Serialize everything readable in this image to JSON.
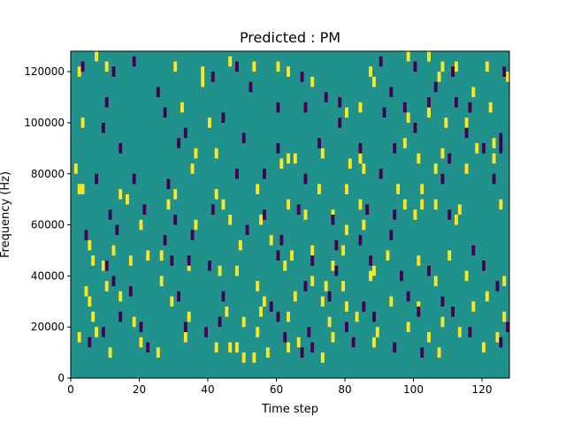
{
  "chart_data": {
    "type": "heatmap",
    "title": "Predicted : PM",
    "xlabel": "Time step",
    "ylabel": "Frequency (Hz)",
    "xlim": [
      0,
      128
    ],
    "ylim": [
      0,
      128000
    ],
    "x_ticks": [
      "0",
      "20",
      "40",
      "60",
      "80",
      "100",
      "120"
    ],
    "y_ticks": [
      "0",
      "20000",
      "40000",
      "60000",
      "80000",
      "100000",
      "120000"
    ],
    "grid": false,
    "colormap": "viridis",
    "colors": {
      "background": "#21918c",
      "high": "#fde725",
      "low": "#440154"
    },
    "cell_height": 4000,
    "high_cells": [
      [
        7,
        124000
      ],
      [
        2,
        118000
      ],
      [
        10,
        120000
      ],
      [
        30,
        120000
      ],
      [
        46,
        122000
      ],
      [
        38,
        118000
      ],
      [
        60,
        120000
      ],
      [
        63,
        118000
      ],
      [
        87,
        118000
      ],
      [
        98,
        124000
      ],
      [
        104,
        124000
      ],
      [
        108,
        120000
      ],
      [
        112,
        120000
      ],
      [
        121,
        120000
      ],
      [
        38,
        114000
      ],
      [
        53,
        120000
      ],
      [
        70,
        114000
      ],
      [
        88,
        114000
      ],
      [
        107,
        116000
      ],
      [
        117,
        110000
      ],
      [
        127,
        116000
      ],
      [
        3,
        98000
      ],
      [
        32,
        104000
      ],
      [
        40,
        98000
      ],
      [
        80,
        102000
      ],
      [
        84,
        104000
      ],
      [
        98,
        100000
      ],
      [
        104,
        102000
      ],
      [
        109,
        98000
      ],
      [
        115,
        98000
      ],
      [
        122,
        104000
      ],
      [
        36,
        86000
      ],
      [
        42,
        86000
      ],
      [
        63,
        84000
      ],
      [
        73,
        86000
      ],
      [
        84,
        84000
      ],
      [
        97,
        90000
      ],
      [
        108,
        86000
      ],
      [
        118,
        88000
      ],
      [
        123,
        90000
      ],
      [
        1,
        80000
      ],
      [
        35,
        80000
      ],
      [
        61,
        82000
      ],
      [
        65,
        84000
      ],
      [
        81,
        82000
      ],
      [
        85,
        80000
      ],
      [
        101,
        84000
      ],
      [
        106,
        80000
      ],
      [
        115,
        80000
      ],
      [
        123,
        84000
      ],
      [
        2,
        72000
      ],
      [
        3,
        72000
      ],
      [
        14,
        70000
      ],
      [
        30,
        70000
      ],
      [
        42,
        70000
      ],
      [
        54,
        72000
      ],
      [
        72,
        72000
      ],
      [
        80,
        72000
      ],
      [
        95,
        72000
      ],
      [
        102,
        72000
      ],
      [
        16,
        68000
      ],
      [
        28,
        66000
      ],
      [
        44,
        66000
      ],
      [
        63,
        66000
      ],
      [
        84,
        66000
      ],
      [
        97,
        66000
      ],
      [
        102,
        66000
      ],
      [
        106,
        66000
      ],
      [
        113,
        64000
      ],
      [
        125,
        66000
      ],
      [
        20,
        58000
      ],
      [
        36,
        58000
      ],
      [
        46,
        60000
      ],
      [
        55,
        60000
      ],
      [
        68,
        62000
      ],
      [
        76,
        62000
      ],
      [
        80,
        56000
      ],
      [
        85,
        58000
      ],
      [
        100,
        62000
      ],
      [
        112,
        60000
      ],
      [
        5,
        50000
      ],
      [
        12,
        48000
      ],
      [
        22,
        46000
      ],
      [
        26,
        46000
      ],
      [
        49,
        50000
      ],
      [
        58,
        52000
      ],
      [
        64,
        46000
      ],
      [
        70,
        48000
      ],
      [
        79,
        48000
      ],
      [
        92,
        46000
      ],
      [
        6,
        44000
      ],
      [
        9,
        42000
      ],
      [
        17,
        44000
      ],
      [
        34,
        42000
      ],
      [
        48,
        40000
      ],
      [
        62,
        42000
      ],
      [
        76,
        42000
      ],
      [
        88,
        40000
      ],
      [
        101,
        44000
      ],
      [
        110,
        46000
      ],
      [
        4,
        32000
      ],
      [
        10,
        34000
      ],
      [
        26,
        36000
      ],
      [
        43,
        40000
      ],
      [
        54,
        34000
      ],
      [
        70,
        36000
      ],
      [
        74,
        34000
      ],
      [
        79,
        34000
      ],
      [
        87,
        38000
      ],
      [
        106,
        36000
      ],
      [
        115,
        38000
      ],
      [
        126,
        36000
      ],
      [
        5,
        28000
      ],
      [
        14,
        30000
      ],
      [
        29,
        28000
      ],
      [
        45,
        24000
      ],
      [
        56,
        28000
      ],
      [
        65,
        30000
      ],
      [
        73,
        28000
      ],
      [
        80,
        26000
      ],
      [
        93,
        28000
      ],
      [
        101,
        26000
      ],
      [
        117,
        26000
      ],
      [
        121,
        30000
      ],
      [
        6,
        22000
      ],
      [
        18,
        20000
      ],
      [
        34,
        22000
      ],
      [
        50,
        20000
      ],
      [
        55,
        24000
      ],
      [
        63,
        22000
      ],
      [
        75,
        20000
      ],
      [
        83,
        22000
      ],
      [
        98,
        18000
      ],
      [
        108,
        20000
      ],
      [
        126,
        22000
      ],
      [
        2,
        14000
      ],
      [
        7,
        16000
      ],
      [
        20,
        12000
      ],
      [
        33,
        14000
      ],
      [
        46,
        10000
      ],
      [
        48,
        10000
      ],
      [
        54,
        16000
      ],
      [
        66,
        12000
      ],
      [
        76,
        14000
      ],
      [
        89,
        16000
      ],
      [
        104,
        14000
      ],
      [
        113,
        16000
      ],
      [
        124,
        14000
      ],
      [
        11,
        8000
      ],
      [
        25,
        8000
      ],
      [
        42,
        10000
      ],
      [
        50,
        6000
      ],
      [
        53,
        6000
      ],
      [
        57,
        8000
      ],
      [
        63,
        10000
      ],
      [
        73,
        6000
      ],
      [
        88,
        12000
      ],
      [
        107,
        8000
      ],
      [
        120,
        10000
      ]
    ],
    "low_cells": [
      [
        3,
        120000
      ],
      [
        12,
        118000
      ],
      [
        18,
        122000
      ],
      [
        41,
        116000
      ],
      [
        48,
        120000
      ],
      [
        67,
        116000
      ],
      [
        90,
        122000
      ],
      [
        100,
        120000
      ],
      [
        111,
        118000
      ],
      [
        126,
        118000
      ],
      [
        25,
        110000
      ],
      [
        52,
        112000
      ],
      [
        74,
        108000
      ],
      [
        93,
        110000
      ],
      [
        106,
        112000
      ],
      [
        116,
        104000
      ],
      [
        10,
        106000
      ],
      [
        27,
        102000
      ],
      [
        44,
        100000
      ],
      [
        60,
        104000
      ],
      [
        68,
        104000
      ],
      [
        78,
        106000
      ],
      [
        91,
        102000
      ],
      [
        97,
        104000
      ],
      [
        104,
        106000
      ],
      [
        112,
        106000
      ],
      [
        9,
        96000
      ],
      [
        33,
        94000
      ],
      [
        50,
        92000
      ],
      [
        78,
        98000
      ],
      [
        100,
        96000
      ],
      [
        115,
        94000
      ],
      [
        125,
        92000
      ],
      [
        14,
        88000
      ],
      [
        31,
        90000
      ],
      [
        60,
        88000
      ],
      [
        72,
        90000
      ],
      [
        84,
        88000
      ],
      [
        94,
        88000
      ],
      [
        110,
        84000
      ],
      [
        120,
        88000
      ],
      [
        125,
        88000
      ],
      [
        7,
        76000
      ],
      [
        18,
        76000
      ],
      [
        28,
        74000
      ],
      [
        48,
        78000
      ],
      [
        56,
        78000
      ],
      [
        68,
        76000
      ],
      [
        90,
        78000
      ],
      [
        108,
        76000
      ],
      [
        123,
        76000
      ],
      [
        11,
        62000
      ],
      [
        21,
        64000
      ],
      [
        30,
        60000
      ],
      [
        41,
        64000
      ],
      [
        56,
        62000
      ],
      [
        66,
        64000
      ],
      [
        76,
        60000
      ],
      [
        86,
        64000
      ],
      [
        94,
        62000
      ],
      [
        110,
        62000
      ],
      [
        4,
        54000
      ],
      [
        13,
        56000
      ],
      [
        27,
        52000
      ],
      [
        35,
        54000
      ],
      [
        51,
        56000
      ],
      [
        61,
        52000
      ],
      [
        77,
        50000
      ],
      [
        84,
        52000
      ],
      [
        93,
        54000
      ],
      [
        117,
        48000
      ],
      [
        10,
        42000
      ],
      [
        29,
        44000
      ],
      [
        34,
        44000
      ],
      [
        40,
        42000
      ],
      [
        60,
        46000
      ],
      [
        70,
        44000
      ],
      [
        77,
        40000
      ],
      [
        87,
        44000
      ],
      [
        96,
        38000
      ],
      [
        104,
        40000
      ],
      [
        120,
        42000
      ],
      [
        12,
        36000
      ],
      [
        17,
        32000
      ],
      [
        31,
        30000
      ],
      [
        44,
        30000
      ],
      [
        58,
        26000
      ],
      [
        68,
        34000
      ],
      [
        75,
        30000
      ],
      [
        85,
        26000
      ],
      [
        98,
        30000
      ],
      [
        108,
        28000
      ],
      [
        124,
        34000
      ],
      [
        14,
        22000
      ],
      [
        20,
        18000
      ],
      [
        33,
        18000
      ],
      [
        43,
        20000
      ],
      [
        60,
        22000
      ],
      [
        69,
        16000
      ],
      [
        80,
        18000
      ],
      [
        88,
        22000
      ],
      [
        101,
        24000
      ],
      [
        111,
        24000
      ],
      [
        127,
        18000
      ],
      [
        5,
        12000
      ],
      [
        9,
        16000
      ],
      [
        22,
        10000
      ],
      [
        39,
        16000
      ],
      [
        62,
        14000
      ],
      [
        67,
        8000
      ],
      [
        70,
        10000
      ],
      [
        82,
        12000
      ],
      [
        94,
        10000
      ],
      [
        102,
        8000
      ],
      [
        116,
        16000
      ],
      [
        125,
        12000
      ]
    ]
  }
}
